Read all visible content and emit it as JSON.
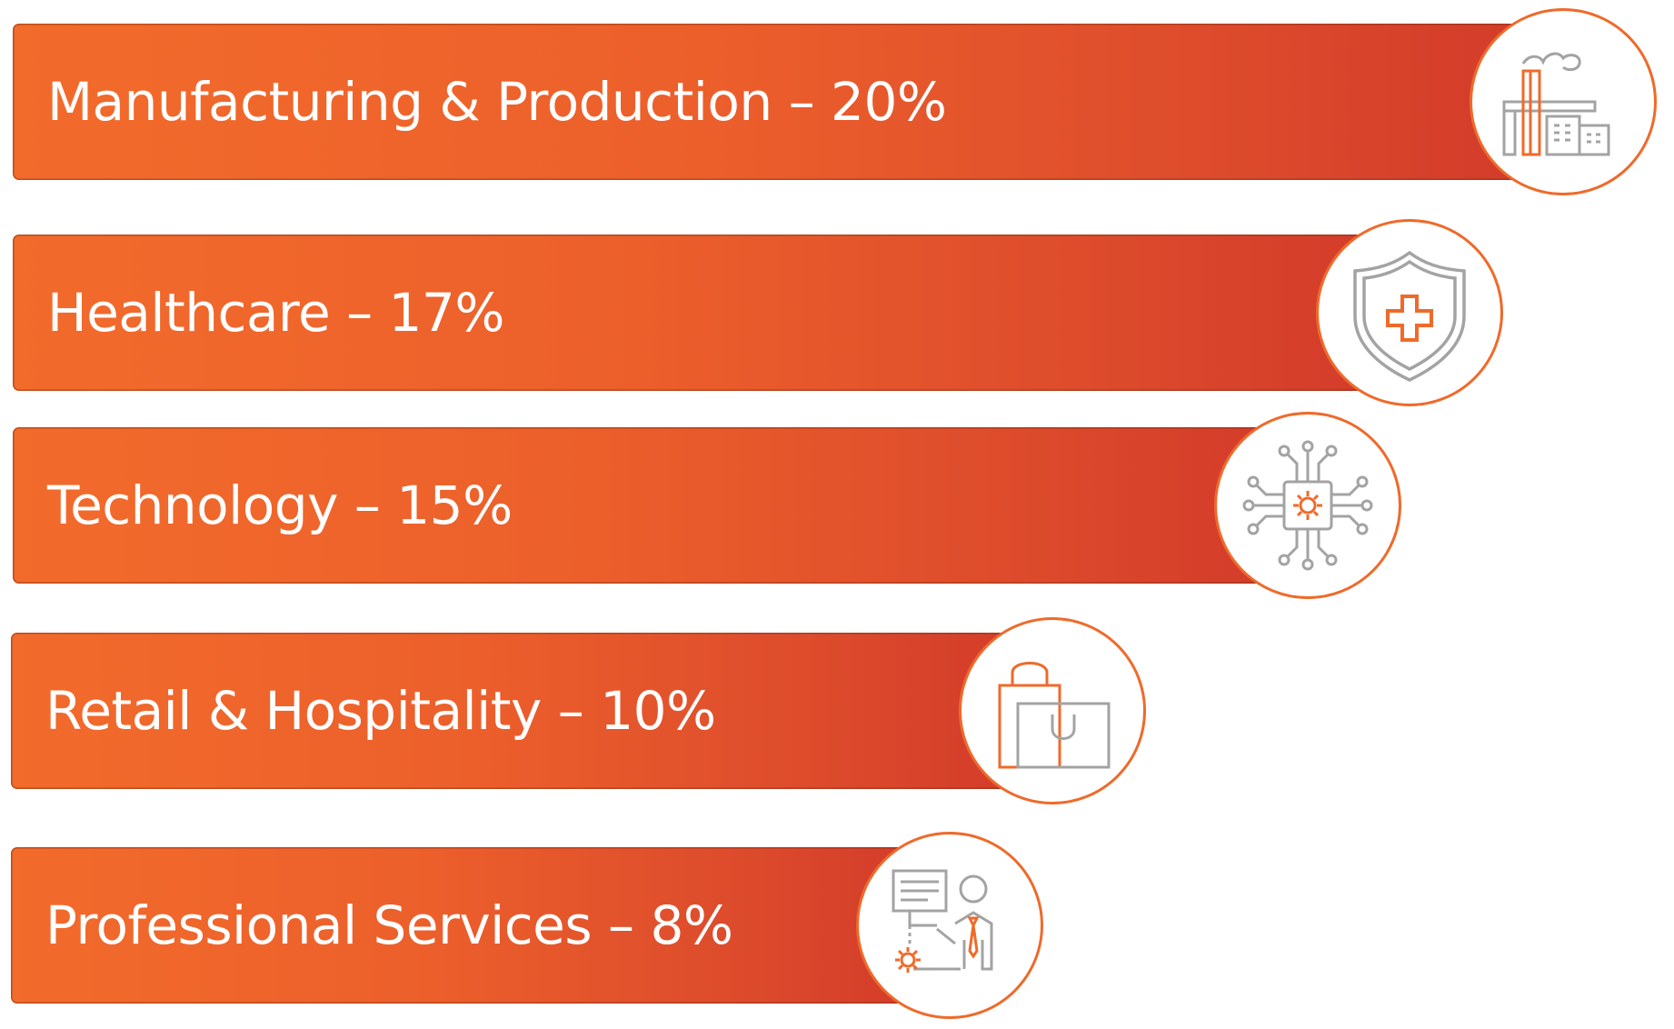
{
  "chart_data": {
    "type": "bar",
    "categories": [
      "Manufacturing & Production",
      "Healthcare",
      "Technology",
      "Retail & Hospitality",
      "Professional Services"
    ],
    "values": [
      20,
      17,
      15,
      10,
      8
    ],
    "labels": [
      "Manufacturing & Production – 20%",
      "Healthcare – 17%",
      "Technology – 15%",
      "Retail & Hospitality – 10%",
      "Professional Services – 8%"
    ],
    "icons": [
      "factory-icon",
      "health-shield-icon",
      "circuit-chip-icon",
      "shopping-bags-icon",
      "business-presenter-icon"
    ],
    "orientation": "horizontal",
    "title": "",
    "xlabel": "",
    "ylabel": ""
  },
  "colors": {
    "bar_start": "#f26b2b",
    "bar_end": "#d23a2a",
    "badge_border": "#ef6a2a",
    "icon_gray": "#a3a3a3",
    "icon_orange": "#ef6a2a",
    "label_text": "#ffffff"
  }
}
